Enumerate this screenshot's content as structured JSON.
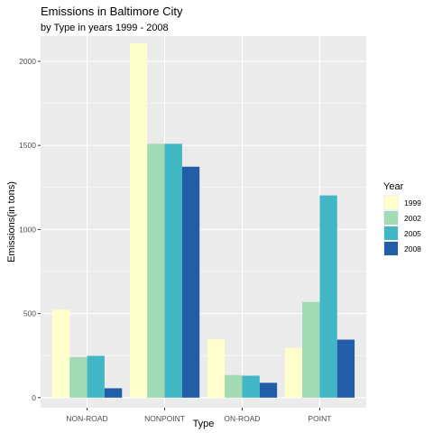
{
  "chart_data": {
    "type": "bar",
    "title": "Emissions in Baltimore City",
    "subtitle": "by Type in years 1999 - 2008",
    "xlabel": "Type",
    "ylabel": "Emissions(in tons)",
    "categories": [
      "NON-ROAD",
      "NONPOINT",
      "ON-ROAD",
      "POINT"
    ],
    "ylim": [
      -60,
      2150
    ],
    "yticks": [
      0,
      500,
      1000,
      1500,
      2000
    ],
    "grid": true,
    "legend": {
      "title": "Year",
      "position": "right"
    },
    "series": [
      {
        "name": "1999",
        "color": "#FFFFCC",
        "values": [
          522.9,
          2107.6,
          346.8,
          296.8
        ]
      },
      {
        "name": "2002",
        "color": "#A1DAB4",
        "values": [
          240.8,
          1509.5,
          134.3,
          569.3
        ]
      },
      {
        "name": "2005",
        "color": "#41B6C4",
        "values": [
          248.9,
          1509.5,
          130.4,
          1202.5
        ]
      },
      {
        "name": "2008",
        "color": "#225EA8",
        "values": [
          55.8,
          1373.2,
          88.3,
          344.98
        ]
      }
    ]
  }
}
